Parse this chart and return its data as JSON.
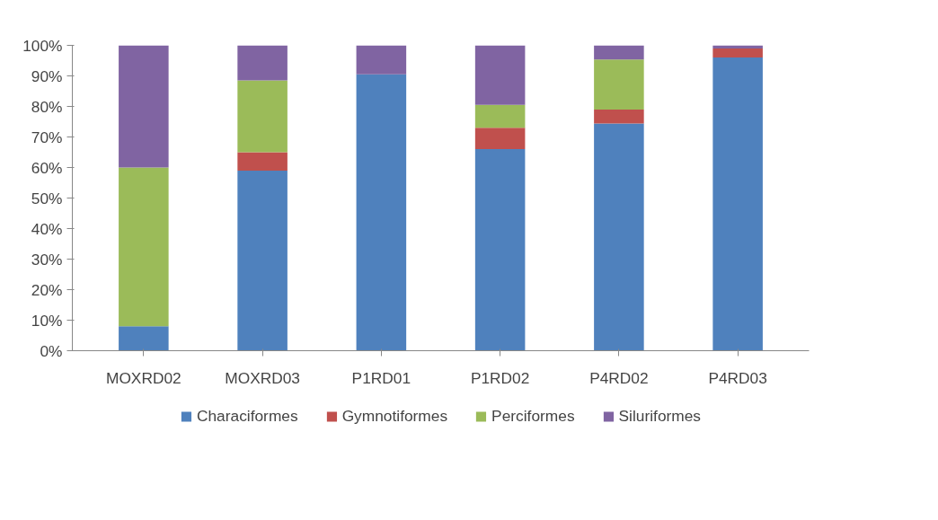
{
  "chart_data": {
    "type": "bar",
    "stacked": true,
    "categories": [
      "MOXRD02",
      "MOXRD03",
      "P1RD01",
      "P1RD02",
      "P4RD02",
      "P4RD03"
    ],
    "series": [
      {
        "name": "Characiformes",
        "color": "#4f81bd",
        "values": [
          8,
          59,
          90.5,
          66,
          74.4,
          96
        ]
      },
      {
        "name": "Gymnotiformes",
        "color": "#c0504d",
        "values": [
          0,
          6,
          0,
          7,
          4.6,
          3
        ]
      },
      {
        "name": "Perciformes",
        "color": "#9bbb59",
        "values": [
          52,
          23.5,
          0,
          7.5,
          16.4,
          0
        ]
      },
      {
        "name": "Siluriformes",
        "color": "#8064a2",
        "values": [
          40,
          11.5,
          9.5,
          19.5,
          4.6,
          1
        ]
      }
    ],
    "ylim": [
      0,
      100
    ],
    "yticks": [
      {
        "value": 0,
        "label": "0%"
      },
      {
        "value": 10,
        "label": "10%"
      },
      {
        "value": 20,
        "label": "20%"
      },
      {
        "value": 30,
        "label": "30%"
      },
      {
        "value": 40,
        "label": "40%"
      },
      {
        "value": 50,
        "label": "50%"
      },
      {
        "value": 60,
        "label": "60%"
      },
      {
        "value": 70,
        "label": "70%"
      },
      {
        "value": 80,
        "label": "80%"
      },
      {
        "value": 90,
        "label": "90%"
      },
      {
        "value": 100,
        "label": "100%"
      }
    ],
    "grid": false,
    "legend": "bottom"
  }
}
